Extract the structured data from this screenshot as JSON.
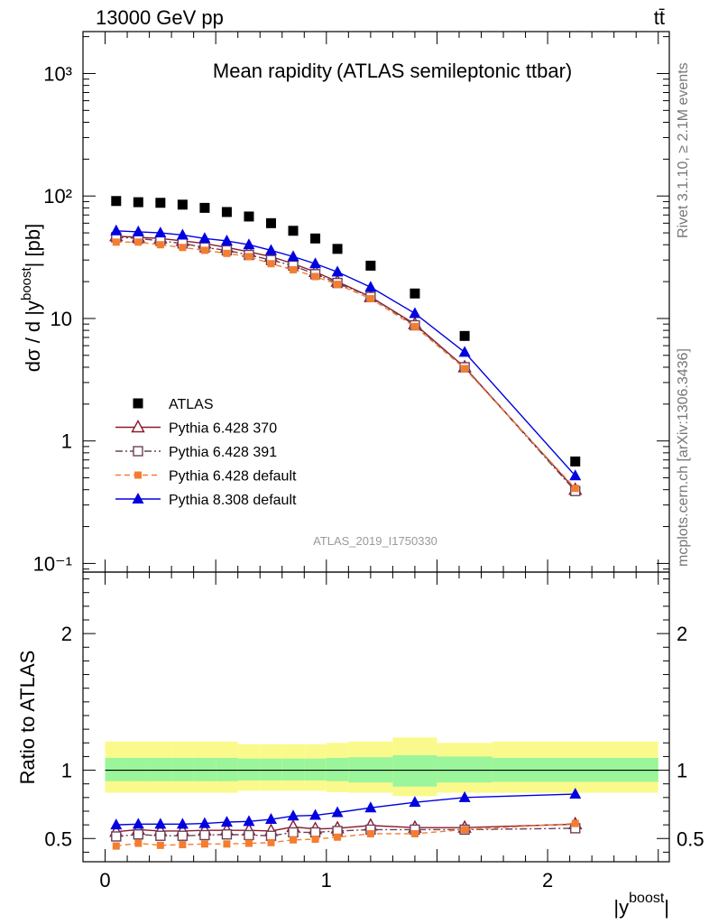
{
  "header": {
    "energy_label": "13000 GeV pp",
    "process_label": "tt̄"
  },
  "side_labels": {
    "rivet": "Rivet 3.1.10, ≥ 2.1M events",
    "mcplots": "mcplots.cern.ch [arXiv:1306.3436]"
  },
  "chart_data": [
    {
      "type": "scatter",
      "title": "Mean rapidity",
      "subtitle": "(ATLAS semileptonic ttbar)",
      "ylabel": "dσ / d |y",
      "ylabel_sup": "boost",
      "ylabel_suffix": "| [pb]",
      "yscale": "log",
      "ylim": [
        0.085,
        2200
      ],
      "xlim": [
        -0.1,
        2.55
      ],
      "y_tick_labels": [
        "10⁻¹",
        "1",
        "10",
        "10²",
        "10³"
      ],
      "reference": "ATLAS_2019_I1750330",
      "legend_position": "bottom-left",
      "x": [
        0.05,
        0.15,
        0.25,
        0.35,
        0.45,
        0.55,
        0.65,
        0.75,
        0.85,
        0.95,
        1.05,
        1.2,
        1.4,
        1.625,
        2.125
      ],
      "series": [
        {
          "name": "ATLAS",
          "color": "#000000",
          "marker": "square-filled",
          "line": "none",
          "values": [
            91,
            89,
            88,
            85,
            80,
            74,
            68,
            60,
            52,
            45,
            37,
            27,
            16,
            7.2,
            0.68
          ]
        },
        {
          "name": "Pythia 6.428 370",
          "color": "#8b1a2b",
          "marker": "triangle-open",
          "line": "solid",
          "values": [
            47,
            46,
            45,
            43,
            41,
            38,
            35,
            32,
            28,
            24,
            20,
            15,
            9.0,
            4.0,
            0.4
          ]
        },
        {
          "name": "Pythia 6.428 391",
          "color": "#6b4058",
          "marker": "square-open",
          "line": "dashdot",
          "values": [
            46,
            45,
            43,
            41,
            38,
            36,
            33,
            30,
            27,
            23,
            19.5,
            15,
            8.8,
            4.0,
            0.39
          ]
        },
        {
          "name": "Pythia 6.428 default",
          "color": "#f47d30",
          "marker": "square-filled-small",
          "line": "dashed",
          "values": [
            42,
            42,
            40,
            38,
            36,
            34,
            32,
            28,
            25,
            22,
            19,
            14.5,
            8.6,
            3.9,
            0.41
          ]
        },
        {
          "name": "Pythia 8.308 default",
          "color": "#0000e0",
          "marker": "triangle-filled",
          "line": "solid",
          "values": [
            52,
            51,
            50,
            48,
            45,
            43,
            40,
            36,
            32,
            28,
            24,
            18,
            11,
            5.3,
            0.52
          ]
        }
      ]
    },
    {
      "type": "line",
      "ylabel": "Ratio to ATLAS",
      "xlabel": "|y",
      "xlabel_sup": "boost",
      "xlabel_suffix": "|",
      "ylim": [
        0.33,
        2.45
      ],
      "xlim": [
        -0.1,
        2.55
      ],
      "y_tick_labels": [
        "0.5",
        "1",
        "2"
      ],
      "x_tick_labels": [
        "0",
        "1",
        "2"
      ],
      "bins": [
        [
          0,
          0.1
        ],
        [
          0.1,
          0.2
        ],
        [
          0.2,
          0.3
        ],
        [
          0.3,
          0.4
        ],
        [
          0.4,
          0.5
        ],
        [
          0.5,
          0.6
        ],
        [
          0.6,
          0.7
        ],
        [
          0.7,
          0.8
        ],
        [
          0.8,
          0.9
        ],
        [
          0.9,
          1.0
        ],
        [
          1.0,
          1.1
        ],
        [
          1.1,
          1.3
        ],
        [
          1.3,
          1.5
        ],
        [
          1.5,
          1.75
        ],
        [
          1.75,
          2.5
        ]
      ],
      "band_inner": [
        [
          0.92,
          1.09
        ],
        [
          0.92,
          1.09
        ],
        [
          0.92,
          1.09
        ],
        [
          0.92,
          1.09
        ],
        [
          0.92,
          1.09
        ],
        [
          0.92,
          1.09
        ],
        [
          0.925,
          1.085
        ],
        [
          0.925,
          1.085
        ],
        [
          0.925,
          1.085
        ],
        [
          0.925,
          1.085
        ],
        [
          0.92,
          1.09
        ],
        [
          0.91,
          1.095
        ],
        [
          0.88,
          1.11
        ],
        [
          0.91,
          1.1
        ],
        [
          0.915,
          1.09
        ]
      ],
      "band_outer": [
        [
          0.835,
          1.21
        ],
        [
          0.835,
          1.21
        ],
        [
          0.835,
          1.21
        ],
        [
          0.835,
          1.21
        ],
        [
          0.835,
          1.21
        ],
        [
          0.835,
          1.21
        ],
        [
          0.85,
          1.19
        ],
        [
          0.85,
          1.19
        ],
        [
          0.85,
          1.19
        ],
        [
          0.85,
          1.19
        ],
        [
          0.84,
          1.2
        ],
        [
          0.835,
          1.21
        ],
        [
          0.81,
          1.24
        ],
        [
          0.835,
          1.2
        ],
        [
          0.835,
          1.21
        ]
      ],
      "band_colors": {
        "inner": "#9bf59b",
        "outer": "#fafa8c"
      },
      "series": [
        {
          "name": "Pythia 6.428 370",
          "color": "#8b1a2b",
          "marker": "triangle-open",
          "line": "solid",
          "values": [
            0.55,
            0.565,
            0.555,
            0.555,
            0.56,
            0.56,
            0.56,
            0.555,
            0.585,
            0.57,
            0.575,
            0.595,
            0.58,
            0.58,
            0.605
          ]
        },
        {
          "name": "Pythia 6.428 391",
          "color": "#6b4058",
          "marker": "square-open",
          "line": "dashdot",
          "values": [
            0.515,
            0.53,
            0.52,
            0.52,
            0.525,
            0.53,
            0.525,
            0.52,
            0.545,
            0.545,
            0.555,
            0.565,
            0.565,
            0.565,
            0.575
          ]
        },
        {
          "name": "Pythia 6.428 default",
          "color": "#f47d30",
          "marker": "square-filled-small",
          "line": "dashed",
          "values": [
            0.445,
            0.465,
            0.45,
            0.455,
            0.46,
            0.46,
            0.465,
            0.47,
            0.49,
            0.495,
            0.51,
            0.535,
            0.535,
            0.565,
            0.61
          ]
        },
        {
          "name": "Pythia 8.308 default",
          "color": "#0000e0",
          "marker": "triangle-filled",
          "line": "solid",
          "values": [
            0.6,
            0.605,
            0.605,
            0.605,
            0.61,
            0.62,
            0.625,
            0.64,
            0.665,
            0.67,
            0.69,
            0.725,
            0.765,
            0.8,
            0.825
          ]
        }
      ]
    }
  ]
}
